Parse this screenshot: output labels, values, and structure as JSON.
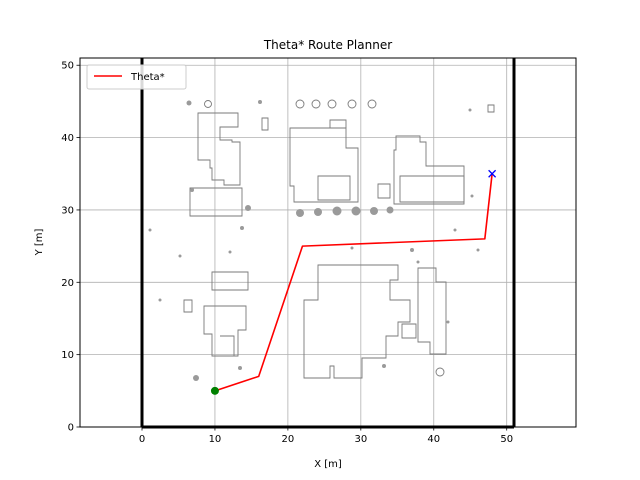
{
  "chart_data": {
    "type": "line",
    "title": "Theta* Route Planner",
    "xlabel": "X [m]",
    "ylabel": "Y [m]",
    "xlim": [
      -8.5,
      59.5
    ],
    "ylim": [
      0,
      51
    ],
    "xticks": [
      0,
      10,
      20,
      30,
      40,
      50
    ],
    "yticks": [
      0,
      10,
      20,
      30,
      40,
      50
    ],
    "grid": true,
    "legend_position": "top-left",
    "boundary": {
      "x": [
        0,
        51
      ],
      "y": [
        0,
        51
      ],
      "color": "#000000"
    },
    "series": [
      {
        "name": "Theta*",
        "color": "#ff0000",
        "x": [
          10,
          16,
          22,
          47,
          48
        ],
        "y": [
          5,
          7,
          25,
          26,
          35
        ]
      }
    ],
    "start": {
      "x": 10,
      "y": 5,
      "color": "#008000"
    },
    "goal": {
      "x": 48,
      "y": 35,
      "color": "#0000ff"
    }
  }
}
